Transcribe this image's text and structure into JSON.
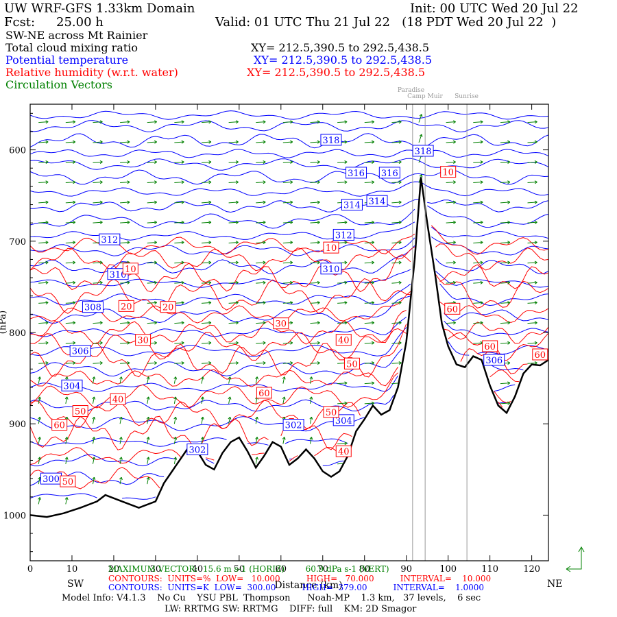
{
  "header": {
    "domain_title": "UW WRF-GFS 1.33km Domain",
    "init": "Init: 00 UTC Wed 20 Jul 22",
    "fcst_label": "Fcst:",
    "fcst_value": "25.00 h",
    "valid": "Valid: 01 UTC Thu 21 Jul 22   (18 PDT Wed 20 Jul 22  )",
    "cross_section": "SW-NE across Mt Rainier",
    "fields": [
      {
        "name": "Total cloud mixing ratio",
        "xy": "XY= 212.5,390.5 to 292.5,438.5",
        "color": "#000000"
      },
      {
        "name": "Potential temperature",
        "xy": "XY= 212.5,390.5 to 292.5,438.5",
        "color": "#0000ff"
      },
      {
        "name": "Relative humidity (w.r.t. water)",
        "xy": "XY= 212.5,390.5 to 292.5,438.5",
        "color": "#ff0000"
      },
      {
        "name": "Circulation Vectors",
        "xy": "",
        "color": "#008000"
      }
    ]
  },
  "chart_data": {
    "type": "cross-section",
    "xlabel": "Distance (km)",
    "x_ticks": [
      0,
      10,
      20,
      30,
      40,
      50,
      60,
      70,
      80,
      90,
      100,
      110,
      120
    ],
    "xlim": [
      0,
      124
    ],
    "y_ticks": [
      600,
      700,
      800,
      900,
      1000
    ],
    "ylim": [
      1050,
      550
    ],
    "ylabel_partial": "(hPa)",
    "left_end": "SW",
    "right_end": "NE",
    "landmarks": [
      {
        "name": "Paradise",
        "x": 91.5
      },
      {
        "name": "Camp Muir",
        "x": 94.5
      },
      {
        "name": "Sunrise",
        "x": 104.5
      }
    ],
    "terrain": [
      [
        0,
        1000
      ],
      [
        4,
        1002
      ],
      [
        8,
        998
      ],
      [
        12,
        992
      ],
      [
        16,
        985
      ],
      [
        18,
        978
      ],
      [
        22,
        985
      ],
      [
        26,
        992
      ],
      [
        30,
        985
      ],
      [
        32,
        965
      ],
      [
        35,
        945
      ],
      [
        38,
        925
      ],
      [
        40,
        930
      ],
      [
        42,
        945
      ],
      [
        44,
        950
      ],
      [
        46,
        932
      ],
      [
        48,
        920
      ],
      [
        50,
        915
      ],
      [
        52,
        930
      ],
      [
        54,
        948
      ],
      [
        56,
        935
      ],
      [
        58,
        920
      ],
      [
        60,
        925
      ],
      [
        62,
        945
      ],
      [
        64,
        938
      ],
      [
        66,
        928
      ],
      [
        68,
        938
      ],
      [
        70,
        952
      ],
      [
        72,
        958
      ],
      [
        74,
        952
      ],
      [
        76,
        935
      ],
      [
        78,
        908
      ],
      [
        80,
        895
      ],
      [
        82,
        880
      ],
      [
        84,
        890
      ],
      [
        86,
        885
      ],
      [
        88,
        860
      ],
      [
        90,
        810
      ],
      [
        92,
        720
      ],
      [
        93.5,
        630
      ],
      [
        95,
        680
      ],
      [
        97,
        740
      ],
      [
        98.5,
        790
      ],
      [
        100,
        815
      ],
      [
        102,
        835
      ],
      [
        104,
        838
      ],
      [
        106,
        826
      ],
      [
        108,
        830
      ],
      [
        110,
        858
      ],
      [
        112,
        880
      ],
      [
        114,
        888
      ],
      [
        116,
        870
      ],
      [
        118,
        845
      ],
      [
        120,
        835
      ],
      [
        122,
        836
      ],
      [
        124,
        830
      ]
    ],
    "theta_contours": [
      {
        "label": "300",
        "x": 5,
        "p": 960
      },
      {
        "label": "302",
        "x": 40,
        "p": 928
      },
      {
        "label": "302",
        "x": 63,
        "p": 901
      },
      {
        "label": "304",
        "x": 75,
        "p": 896
      },
      {
        "label": "304",
        "x": 10,
        "p": 858
      },
      {
        "label": "306",
        "x": 12,
        "p": 820
      },
      {
        "label": "306",
        "x": 111,
        "p": 830
      },
      {
        "label": "308",
        "x": 15,
        "p": 772
      },
      {
        "label": "310",
        "x": 21,
        "p": 736
      },
      {
        "label": "310",
        "x": 72,
        "p": 730
      },
      {
        "label": "312",
        "x": 19,
        "p": 698
      },
      {
        "label": "312",
        "x": 75,
        "p": 693
      },
      {
        "label": "314",
        "x": 77,
        "p": 660
      },
      {
        "label": "314",
        "x": 83,
        "p": 656
      },
      {
        "label": "316",
        "x": 78,
        "p": 625
      },
      {
        "label": "316",
        "x": 86,
        "p": 625
      },
      {
        "label": "318",
        "x": 72,
        "p": 589
      },
      {
        "label": "318",
        "x": 94,
        "p": 601
      }
    ],
    "rh_contours": [
      {
        "label": "10",
        "x": 24,
        "p": 730
      },
      {
        "label": "10",
        "x": 72,
        "p": 707
      },
      {
        "label": "10",
        "x": 100,
        "p": 624
      },
      {
        "label": "20",
        "x": 23,
        "p": 771
      },
      {
        "label": "20",
        "x": 33,
        "p": 772
      },
      {
        "label": "30",
        "x": 27,
        "p": 808
      },
      {
        "label": "30",
        "x": 60,
        "p": 790
      },
      {
        "label": "40",
        "x": 21,
        "p": 873
      },
      {
        "label": "40",
        "x": 75,
        "p": 808
      },
      {
        "label": "40",
        "x": 75,
        "p": 930
      },
      {
        "label": "50",
        "x": 12,
        "p": 886
      },
      {
        "label": "50",
        "x": 77,
        "p": 834
      },
      {
        "label": "50",
        "x": 72,
        "p": 887
      },
      {
        "label": "50",
        "x": 9,
        "p": 963
      },
      {
        "label": "60",
        "x": 7,
        "p": 901
      },
      {
        "label": "60",
        "x": 56,
        "p": 866
      },
      {
        "label": "60",
        "x": 101,
        "p": 774
      },
      {
        "label": "60",
        "x": 110,
        "p": 815
      },
      {
        "label": "60",
        "x": 122,
        "p": 824
      }
    ]
  },
  "footer": {
    "max_vector": "MAXIMUM VECTOR:  15.6 m s-1 (HORIZ)        60.9 dPa s-1 (VERT)",
    "rh_contours": "CONTOURS:  UNITS=%  LOW=   10.000          HIGH=   70.000          INTERVAL=    10.000",
    "theta_contours": "CONTOURS:  UNITS=K  LOW=  300.00          HIGH=  379.00          INTERVAL=    1.0000",
    "model_info": "Model Info: V4.1.3    No Cu    YSU PBL  Thompson      Noah-MP    1.3 km,   37 levels,    6 sec",
    "model_info2": "LW: RRTMG SW: RRTMG    DIFF: full    KM: 2D Smagor"
  }
}
